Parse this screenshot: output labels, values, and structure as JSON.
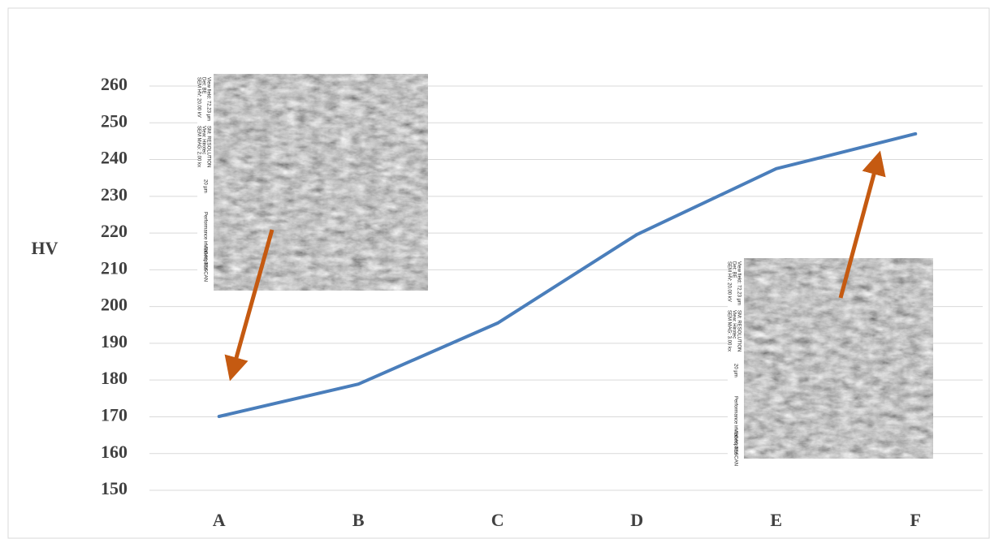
{
  "chart_data": {
    "type": "line",
    "ylabel": "HV",
    "categories": [
      "A",
      "B",
      "C",
      "D",
      "E",
      "F"
    ],
    "values": [
      170.1,
      178.9,
      195.5,
      219.6,
      237.5,
      247
    ],
    "color": "#4a7ebb",
    "ylim": [
      150,
      260
    ],
    "yticks": [
      150,
      160,
      170,
      180,
      190,
      200,
      210,
      220,
      230,
      240,
      250,
      260
    ],
    "grid": true,
    "micrographs": [
      {
        "labels": [
          "SEM HV: 20.00 kV",
          "Det: BE",
          "View field: 72.23 µm",
          "SEM MAG: 2.00 kx",
          "View: Hirotec",
          "SM: RESOLUTION",
          "20 µm",
          "Performance in nanospace",
          "VEGA\\\\ TESCAN"
        ]
      },
      {
        "labels": [
          "SEM HV: 20.00 kV",
          "Det: BE",
          "View field: 72.23 µm",
          "SEM MAG: 3.00 kx",
          "View: Hirotec",
          "SM: RESOLUTION",
          "20 µm",
          "Performance in nanospace",
          "VEGA\\\\ TESCAN"
        ]
      }
    ]
  }
}
